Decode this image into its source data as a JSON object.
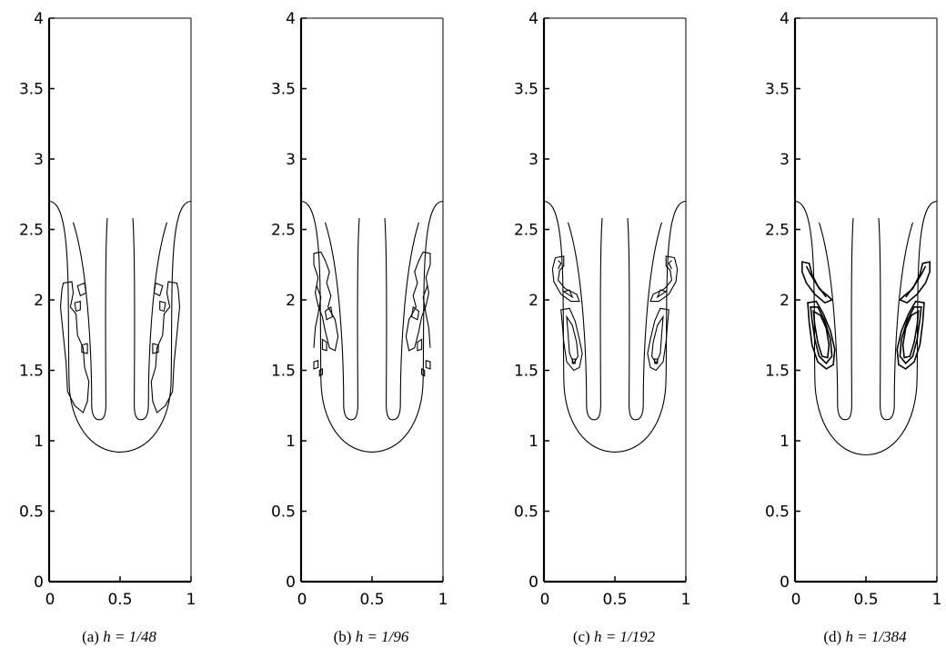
{
  "figure": {
    "subcaptions": [
      {
        "tag": "(a)",
        "math": "h = 1/48"
      },
      {
        "tag": "(b)",
        "math": "h = 1/96"
      },
      {
        "tag": "(c)",
        "math": "h = 1/192"
      },
      {
        "tag": "(d)",
        "math": "h = 1/384"
      }
    ]
  },
  "chart_data": [
    {
      "type": "contour",
      "panel": "a",
      "xlim": [
        0,
        1
      ],
      "ylim": [
        0,
        4
      ],
      "x_ticks": [
        "0",
        "0.5",
        "1"
      ],
      "y_ticks": [
        "0",
        "0.5",
        "1",
        "1.5",
        "2",
        "2.5",
        "3",
        "3.5",
        "4"
      ],
      "interface": {
        "outer_top_y": 2.7,
        "outer_bottom_y": 0.92,
        "inner_bottom_y": 1.15,
        "spike_x": 0.5
      },
      "detail": "coarse",
      "caption": "(a) h = 1/48"
    },
    {
      "type": "contour",
      "panel": "b",
      "xlim": [
        0,
        1
      ],
      "ylim": [
        0,
        4
      ],
      "x_ticks": [
        "0",
        "0.5",
        "1"
      ],
      "y_ticks": [
        "0",
        "0.5",
        "1",
        "1.5",
        "2",
        "2.5",
        "3",
        "3.5",
        "4"
      ],
      "interface": {
        "outer_top_y": 2.7,
        "outer_bottom_y": 0.92,
        "inner_bottom_y": 1.15,
        "spike_x": 0.5
      },
      "detail": "fragmented",
      "caption": "(b) h = 1/96"
    },
    {
      "type": "contour",
      "panel": "c",
      "xlim": [
        0,
        1
      ],
      "ylim": [
        0,
        4
      ],
      "x_ticks": [
        "0",
        "0.5",
        "1"
      ],
      "y_ticks": [
        "0",
        "0.5",
        "1",
        "1.5",
        "2",
        "2.5",
        "3",
        "3.5",
        "4"
      ],
      "interface": {
        "outer_top_y": 2.7,
        "outer_bottom_y": 0.92,
        "inner_bottom_y": 1.15,
        "spike_x": 0.5
      },
      "detail": "rolled",
      "caption": "(c) h = 1/192"
    },
    {
      "type": "contour",
      "panel": "d",
      "xlim": [
        0,
        1
      ],
      "ylim": [
        0,
        4
      ],
      "x_ticks": [
        "0",
        "0.5",
        "1"
      ],
      "y_ticks": [
        "0",
        "0.5",
        "1",
        "1.5",
        "2",
        "2.5",
        "3",
        "3.5",
        "4"
      ],
      "interface": {
        "outer_top_y": 2.7,
        "outer_bottom_y": 0.9,
        "inner_bottom_y": 1.15,
        "spike_x": 0.5
      },
      "detail": "resolved",
      "caption": "(d) h = 1/384"
    }
  ]
}
